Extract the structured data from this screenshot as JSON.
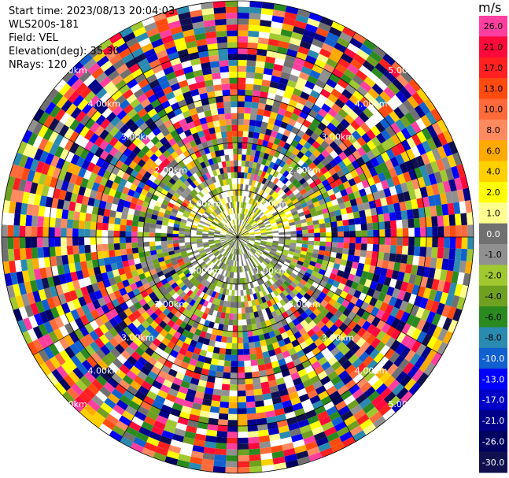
{
  "header": {
    "lines": [
      "Start time: 2023/08/13 20:04:03",
      "WLS200s-181",
      "Field: VEL",
      "Elevation(deg): 35.30",
      "NRays: 120"
    ]
  },
  "colorbar": {
    "unit": "m/s",
    "ticks": [
      "26.0",
      "21.0",
      "17.0",
      "13.0",
      "10.0",
      "8.0",
      "6.0",
      "4.0",
      "2.0",
      "1.0",
      "0.0",
      "-1.0",
      "-2.0",
      "-4.0",
      "-6.0",
      "-8.0",
      "-10.0",
      "-13.0",
      "-17.0",
      "-21.0",
      "-26.0",
      "-30.0"
    ],
    "colors": [
      "#ff3fa0",
      "#ff0a3a",
      "#ff2020",
      "#ff4a10",
      "#ff6a3a",
      "#ff8a60",
      "#ffaa00",
      "#ffd000",
      "#ffff00",
      "#ffff90",
      "#707070",
      "#909090",
      "#a0c830",
      "#70a020",
      "#2a8a20",
      "#2a8ab0",
      "#1060d0",
      "#0000ff",
      "#0000c8",
      "#00008a",
      "#000060",
      "#101050"
    ]
  },
  "chart_data": {
    "type": "heatmap",
    "title": "",
    "projection": "polar",
    "n_rays": 120,
    "elevation_deg": 35.3,
    "field": "VEL",
    "range_labels": [
      "1.00km",
      "2.00km",
      "3.00km",
      "4.00km",
      "5.00km"
    ],
    "range_rings_km": [
      1,
      2,
      3,
      4,
      5
    ],
    "value_range": [
      -30.0,
      26.0
    ]
  }
}
